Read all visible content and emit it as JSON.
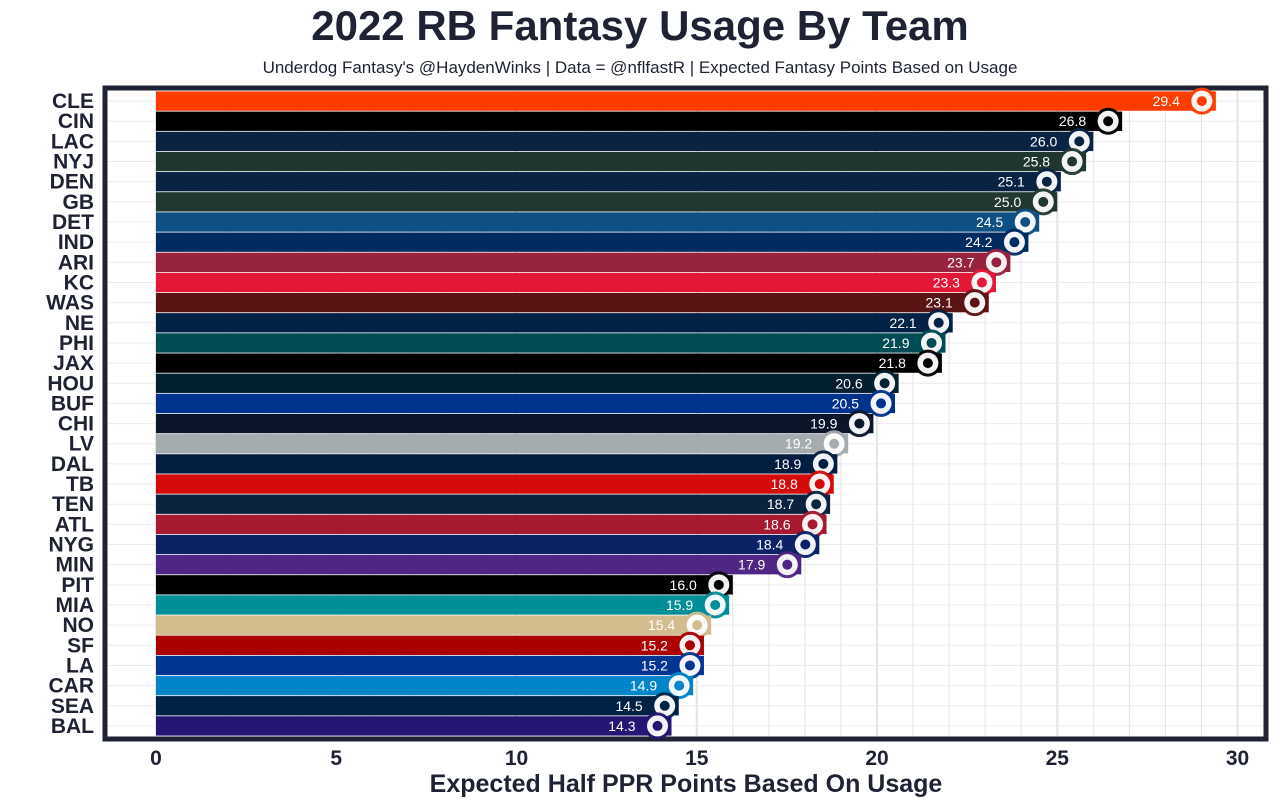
{
  "chart_data": {
    "type": "bar",
    "orientation": "horizontal",
    "title": "2022 RB Fantasy Usage By Team",
    "subtitle": "Underdog Fantasy's @HaydenWinks | Data = @nflfastR | Expected Fantasy Points Based on Usage",
    "xlabel": "Expected Half PPR Points Based On Usage",
    "ylabel": "",
    "xlim": [
      0,
      30
    ],
    "xticks": [
      0,
      5,
      10,
      15,
      20,
      25,
      30
    ],
    "grid": true,
    "categories": [
      "CLE",
      "CIN",
      "LAC",
      "NYJ",
      "DEN",
      "GB",
      "DET",
      "IND",
      "ARI",
      "KC",
      "WAS",
      "NE",
      "PHI",
      "JAX",
      "HOU",
      "BUF",
      "CHI",
      "LV",
      "DAL",
      "TB",
      "TEN",
      "ATL",
      "NYG",
      "MIN",
      "PIT",
      "MIA",
      "NO",
      "SF",
      "LA",
      "CAR",
      "SEA",
      "BAL"
    ],
    "values": [
      29.4,
      26.8,
      26.0,
      25.8,
      25.1,
      25.0,
      24.5,
      24.2,
      23.7,
      23.3,
      23.1,
      22.1,
      21.9,
      21.8,
      20.6,
      20.5,
      19.9,
      19.2,
      18.9,
      18.8,
      18.7,
      18.6,
      18.4,
      17.9,
      16.0,
      15.9,
      15.4,
      15.2,
      15.2,
      14.9,
      14.5,
      14.3
    ],
    "value_labels": [
      "29.4",
      "26.8",
      "26.0",
      "25.8",
      "25.1",
      "25.0",
      "24.5",
      "24.2",
      "23.7",
      "23.3",
      "23.1",
      "22.1",
      "21.9",
      "21.8",
      "20.6",
      "20.5",
      "19.9",
      "19.2",
      "18.9",
      "18.8",
      "18.7",
      "18.6",
      "18.4",
      "17.9",
      "16.0",
      "15.9",
      "15.4",
      "15.2",
      "15.2",
      "14.9",
      "14.5",
      "14.3"
    ],
    "colors": [
      "#FF3C00",
      "#000000",
      "#0A2342",
      "#203731",
      "#0A2343",
      "#203732",
      "#0E4F84",
      "#002C5F",
      "#97233F",
      "#E31837",
      "#5A1414",
      "#002244",
      "#004C54",
      "#000001",
      "#03202F",
      "#00338D",
      "#0B162A",
      "#A5ACAF",
      "#041E42",
      "#D50A0A",
      "#0C2340",
      "#A71930",
      "#0B2265",
      "#4F2683",
      "#000002",
      "#008E97",
      "#D3BC8D",
      "#AA0000",
      "#003594",
      "#0085CA",
      "#002245",
      "#241773"
    ],
    "logo_icons": [
      "browns-helmet-icon",
      "bengals-logo-icon",
      "chargers-bolt-icon",
      "jets-logo-icon",
      "broncos-logo-icon",
      "packers-logo-icon",
      "lions-logo-icon",
      "colts-horseshoe-icon",
      "cardinals-logo-icon",
      "chiefs-logo-icon",
      "commanders-logo-icon",
      "patriots-logo-icon",
      "eagles-logo-icon",
      "jaguars-logo-icon",
      "texans-logo-icon",
      "bills-logo-icon",
      "bears-logo-icon",
      "raiders-logo-icon",
      "cowboys-star-icon",
      "buccaneers-logo-icon",
      "titans-logo-icon",
      "falcons-logo-icon",
      "giants-logo-icon",
      "vikings-logo-icon",
      "steelers-logo-icon",
      "dolphins-logo-icon",
      "saints-fleur-icon",
      "49ers-logo-icon",
      "rams-logo-icon",
      "panthers-logo-icon",
      "seahawks-logo-icon",
      "ravens-logo-icon"
    ]
  }
}
